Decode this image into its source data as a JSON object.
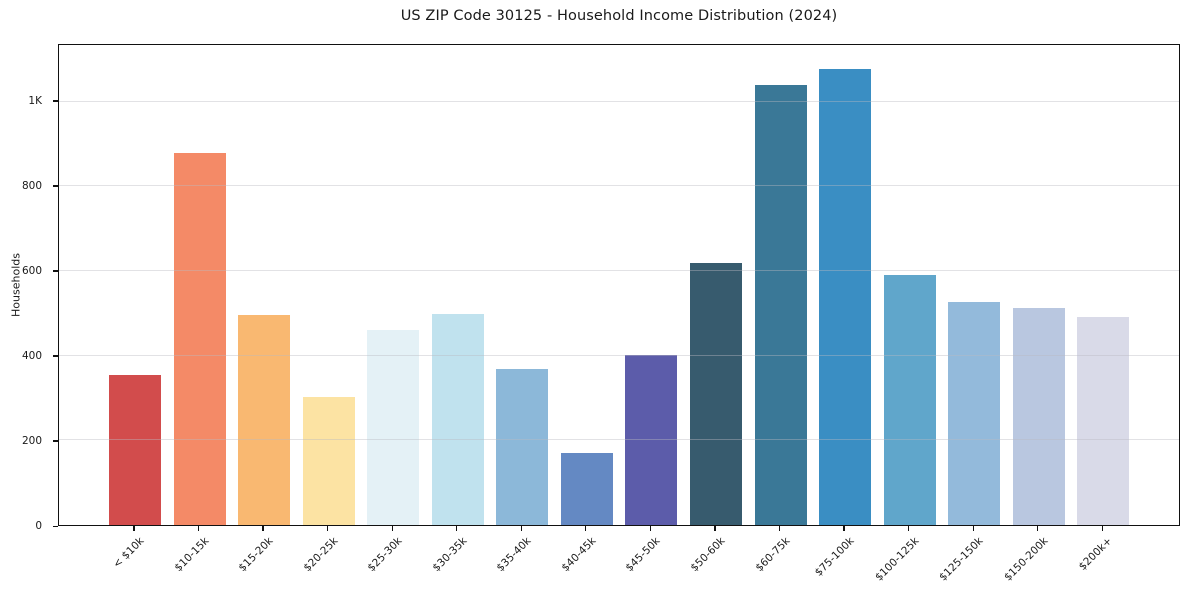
{
  "chart_data": {
    "type": "bar",
    "title": "US ZIP Code 30125 - Household Income Distribution (2024)",
    "xlabel": "",
    "ylabel": "Households",
    "categories": [
      "< $10k",
      "$10-15k",
      "$15-20k",
      "$20-25k",
      "$25-30k",
      "$30-35k",
      "$35-40k",
      "$40-45k",
      "$45-50k",
      "$50-60k",
      "$60-75k",
      "$75-100k",
      "$100-125k",
      "$125-150k",
      "$150-200k",
      "$200k+"
    ],
    "values": [
      354,
      880,
      495,
      303,
      460,
      499,
      368,
      170,
      401,
      618,
      1040,
      1078,
      590,
      527,
      513,
      492
    ],
    "bar_colors": [
      "#d24c4c",
      "#f48a67",
      "#f9b871",
      "#fce3a3",
      "#e4f1f6",
      "#c0e2ee",
      "#8cb8d9",
      "#6489c3",
      "#5c5caa",
      "#375b6e",
      "#3a7897",
      "#3a8ec3",
      "#60a6cb",
      "#93badb",
      "#b9c7e0",
      "#d9dae8"
    ],
    "ylim": [
      0,
      1134
    ],
    "ytick_values": [
      0,
      200,
      400,
      600,
      800,
      1000
    ],
    "ytick_labels": [
      "0",
      "200",
      "400",
      "600",
      "800",
      "1K"
    ],
    "grid": "horizontal",
    "legend": "none",
    "plot_border": true,
    "background": "#ffffff",
    "grid_color": "#e9e9eb",
    "axis_color": "#111111",
    "text_color": "#1a1a1a"
  }
}
